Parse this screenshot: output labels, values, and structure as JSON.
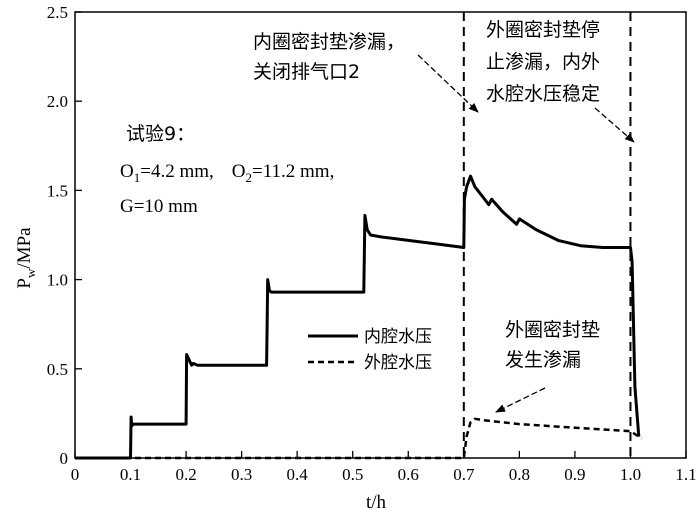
{
  "chart_data": {
    "type": "line",
    "xlabel": "t/h",
    "ylabel_main": "P",
    "ylabel_sub": "w",
    "ylabel_unit": "/MPa",
    "xlim": [
      0,
      1.1
    ],
    "ylim": [
      0,
      2.5
    ],
    "x_ticks": [
      "0",
      "0.1",
      "0.2",
      "0.3",
      "0.4",
      "0.5",
      "0.6",
      "0.7",
      "0.8",
      "0.9",
      "1.0",
      "1.1"
    ],
    "y_ticks": [
      "0",
      "0.5",
      "1.0",
      "1.5",
      "2.0",
      "2.5"
    ],
    "legend": {
      "position": "center-right",
      "entries": [
        "内腔水压",
        "外腔水压"
      ]
    },
    "series": [
      {
        "name": "内腔水压",
        "style": "solid",
        "x": [
          0,
          0.1,
          0.101,
          0.102,
          0.105,
          0.11,
          0.2,
          0.201,
          0.21,
          0.213,
          0.22,
          0.345,
          0.347,
          0.35,
          0.353,
          0.36,
          0.52,
          0.522,
          0.526,
          0.532,
          0.55,
          0.6,
          0.65,
          0.7,
          0.701,
          0.705,
          0.712,
          0.72,
          0.735,
          0.745,
          0.75,
          0.77,
          0.795,
          0.8,
          0.83,
          0.87,
          0.91,
          0.95,
          1.0,
          1.003,
          1.008,
          1.015
        ],
        "y": [
          0,
          0,
          0.23,
          0.18,
          0.19,
          0.19,
          0.19,
          0.58,
          0.52,
          0.53,
          0.52,
          0.52,
          1.0,
          0.94,
          0.93,
          0.93,
          0.93,
          1.36,
          1.28,
          1.25,
          1.24,
          1.22,
          1.2,
          1.18,
          1.45,
          1.52,
          1.58,
          1.52,
          1.46,
          1.42,
          1.45,
          1.38,
          1.31,
          1.34,
          1.28,
          1.22,
          1.19,
          1.18,
          1.18,
          1.1,
          0.4,
          0.12
        ]
      },
      {
        "name": "外腔水压",
        "style": "dashed",
        "x": [
          0,
          0.7,
          0.705,
          0.712,
          0.72,
          0.74,
          0.77,
          0.8,
          0.85,
          0.9,
          0.95,
          1.0,
          1.02
        ],
        "y": [
          0,
          0,
          0.12,
          0.2,
          0.22,
          0.21,
          0.2,
          0.19,
          0.18,
          0.17,
          0.16,
          0.15,
          0.11
        ]
      }
    ],
    "vertical_lines": [
      0.7,
      1.0
    ],
    "annotations": {
      "test_title": "试验9：",
      "o1_base": "O",
      "o1_sub": "1",
      "o1_value": "=4.2 mm,",
      "o2_base": "O",
      "o2_sub": "2",
      "o2_value": "=11.2 mm,",
      "g_text": "G=10 mm",
      "inner_leak_line1": "内圈密封垫渗漏，",
      "inner_leak_line2": "关闭排气口2",
      "outer_stop_line1": "外圈密封垫停",
      "outer_stop_line2": "止渗漏，内外",
      "outer_stop_line3": "水腔水压稳定",
      "outer_leak_line1": "外圈密封垫",
      "outer_leak_line2": "发生渗漏"
    },
    "grid": false
  }
}
